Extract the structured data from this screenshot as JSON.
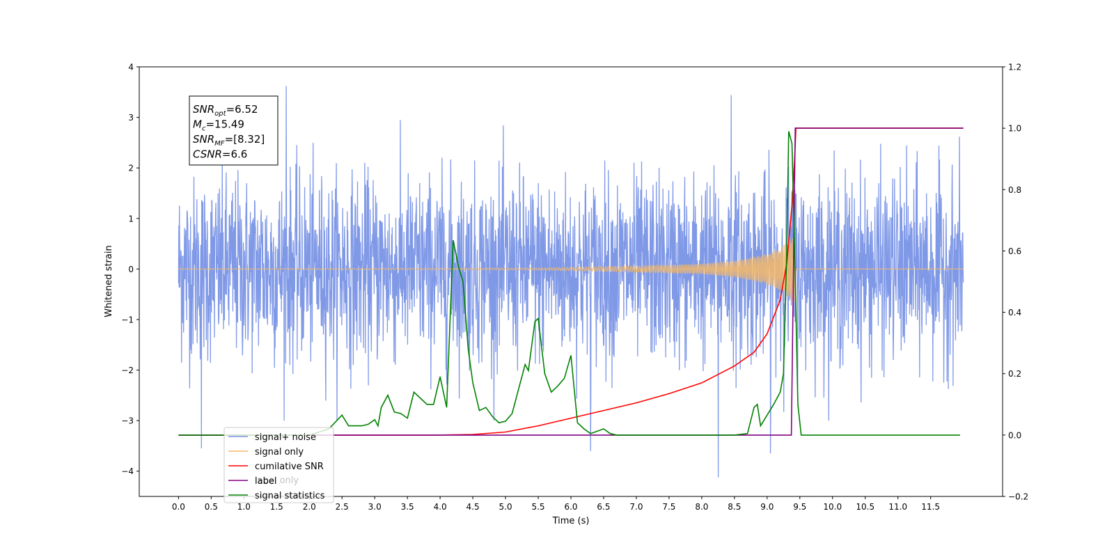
{
  "chart_data": {
    "type": "line",
    "xlabel": "Time (s)",
    "ylabel": "Whitened strain",
    "xlim": [
      -0.6,
      12.6
    ],
    "ylim_left": [
      -4.5,
      4.0
    ],
    "ylim_right": [
      -0.2,
      1.2
    ],
    "x_ticks": [
      0.0,
      0.5,
      1.0,
      1.5,
      2.0,
      2.5,
      3.0,
      3.5,
      4.0,
      4.5,
      5.0,
      5.5,
      6.0,
      6.5,
      7.0,
      7.5,
      8.0,
      8.5,
      9.0,
      9.5,
      10.0,
      10.5,
      11.0,
      11.5
    ],
    "x_tick_labels": [
      "0.0",
      "0.5",
      "1.0",
      "1.5",
      "2.0",
      "2.5",
      "3.0",
      "3.5",
      "4.0",
      "4.5",
      "5.0",
      "5.5",
      "6.0",
      "6.5",
      "7.0",
      "7.5",
      "8.0",
      "8.5",
      "9.0",
      "9.5",
      "10.0",
      "10.5",
      "11.0",
      "11.5"
    ],
    "y_ticks_left": [
      -4,
      -3,
      -2,
      -1,
      0,
      1,
      2,
      3,
      4
    ],
    "y_tick_labels_left": [
      "−4",
      "−3",
      "−2",
      "−1",
      "0",
      "1",
      "2",
      "3",
      "4"
    ],
    "y_ticks_right": [
      -0.2,
      0.0,
      0.2,
      0.4,
      0.6,
      0.8,
      1.0,
      1.2
    ],
    "y_tick_labels_right": [
      "−0.2",
      "0.0",
      "0.2",
      "0.4",
      "0.6",
      "0.8",
      "1.0",
      "1.2"
    ],
    "grid": false,
    "legend_position": "lower-left",
    "annotation": [
      {
        "base": "SNR",
        "sub": "opt",
        "rest": "=6.52"
      },
      {
        "base": "M",
        "sub": "c",
        "rest": "=15.49"
      },
      {
        "base": "SNR",
        "sub": "MF",
        "rest": "=[8.32]"
      },
      {
        "base": "CSNR",
        "sub": "",
        "rest": "=6.6"
      }
    ],
    "series": [
      {
        "name": "signal+ noise",
        "axis": "left",
        "color": "#7994e6",
        "description": "noise band, approx",
        "x_range": [
          0.0,
          12.0
        ],
        "envelope_typical": [
          -2.2,
          2.2
        ],
        "peaks": [
          [
            1.65,
            3.62
          ],
          [
            8.45,
            3.44
          ],
          [
            0.35,
            -3.55
          ],
          [
            8.25,
            -4.12
          ],
          [
            9.05,
            -3.65
          ],
          [
            6.3,
            -3.6
          ]
        ]
      },
      {
        "name": "signal only",
        "axis": "left",
        "color": "#f5b869",
        "description": "chirp, approx",
        "x": [
          0.0,
          5.5,
          7.0,
          8.0,
          8.5,
          9.0,
          9.2,
          9.35,
          9.42,
          9.44,
          12.0
        ],
        "amplitude": [
          0.0,
          0.02,
          0.06,
          0.1,
          0.16,
          0.3,
          0.42,
          0.58,
          0.7,
          0.0,
          0.0
        ]
      },
      {
        "name": "cumilative SNR",
        "axis": "right",
        "color": "#ff0000",
        "x": [
          0.0,
          4.0,
          4.5,
          5.0,
          5.5,
          6.0,
          6.5,
          7.0,
          7.5,
          8.0,
          8.5,
          8.8,
          9.0,
          9.2,
          9.3,
          9.38,
          9.42,
          9.44,
          12.0
        ],
        "values": [
          0.0,
          0.0,
          0.002,
          0.01,
          0.03,
          0.055,
          0.08,
          0.105,
          0.135,
          0.17,
          0.225,
          0.27,
          0.33,
          0.44,
          0.56,
          0.75,
          0.9,
          1.0,
          1.0
        ]
      },
      {
        "name": "label",
        "axis": "right",
        "color": "#800080",
        "x": [
          0.0,
          9.37,
          9.43,
          12.0
        ],
        "values": [
          0.0,
          0.0,
          1.0,
          1.0
        ],
        "extra_legend_text": "label only"
      },
      {
        "name": "signal statistics",
        "axis": "right",
        "color": "#008000",
        "x": [
          0.0,
          2.0,
          2.3,
          2.5,
          2.6,
          2.7,
          2.8,
          2.9,
          3.0,
          3.05,
          3.1,
          3.2,
          3.3,
          3.4,
          3.5,
          3.6,
          3.7,
          3.8,
          3.9,
          4.0,
          4.1,
          4.2,
          4.28,
          4.35,
          4.43,
          4.5,
          4.6,
          4.7,
          4.8,
          4.9,
          5.0,
          5.1,
          5.3,
          5.35,
          5.45,
          5.5,
          5.6,
          5.7,
          5.8,
          5.9,
          6.0,
          6.1,
          6.2,
          6.3,
          6.5,
          6.6,
          6.7,
          7.0,
          8.5,
          8.7,
          8.8,
          8.85,
          8.9,
          9.0,
          9.1,
          9.2,
          9.25,
          9.3,
          9.33,
          9.38,
          9.42,
          9.47,
          9.52,
          9.56,
          11.95
        ],
        "values": [
          0.0,
          0.0,
          0.02,
          0.065,
          0.03,
          0.03,
          0.03,
          0.035,
          0.05,
          0.03,
          0.09,
          0.13,
          0.075,
          0.07,
          0.055,
          0.14,
          0.12,
          0.1,
          0.1,
          0.19,
          0.09,
          0.635,
          0.55,
          0.5,
          0.28,
          0.17,
          0.08,
          0.09,
          0.06,
          0.04,
          0.045,
          0.07,
          0.23,
          0.21,
          0.37,
          0.38,
          0.2,
          0.14,
          0.16,
          0.185,
          0.26,
          0.04,
          0.02,
          0.005,
          0.02,
          0.005,
          0.0,
          0.0,
          0.0,
          0.005,
          0.09,
          0.1,
          0.03,
          0.065,
          0.1,
          0.14,
          0.2,
          0.6,
          0.99,
          0.95,
          0.6,
          0.1,
          0.0,
          0.0,
          0.0
        ]
      }
    ]
  }
}
